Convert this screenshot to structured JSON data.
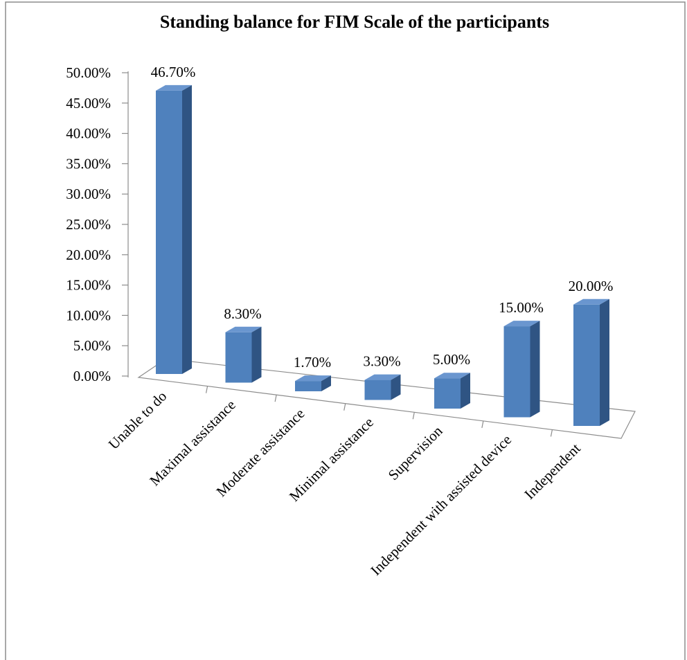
{
  "chart_data": {
    "type": "bar3d",
    "title": "Standing balance for FIM Scale of the participants",
    "categories": [
      "Unable to do",
      "Maximal assistance",
      "Moderate assistance",
      "Minimal assistance",
      "Supervision",
      "Independent with assisted device",
      "Independent"
    ],
    "values": [
      46.7,
      8.3,
      1.7,
      3.3,
      5.0,
      15.0,
      20.0
    ],
    "value_labels": [
      "46.70%",
      "8.30%",
      "1.70%",
      "3.30%",
      "5.00%",
      "15.00%",
      "20.00%"
    ],
    "color": "#4f81bd",
    "ylim": [
      0,
      50
    ],
    "yticks": [
      {
        "value": 0,
        "label": "0.00%"
      },
      {
        "value": 5,
        "label": "5.00%"
      },
      {
        "value": 10,
        "label": "10.00%"
      },
      {
        "value": 15,
        "label": "15.00%"
      },
      {
        "value": 20,
        "label": "20.00%"
      },
      {
        "value": 25,
        "label": "25.00%"
      },
      {
        "value": 30,
        "label": "30.00%"
      },
      {
        "value": 35,
        "label": "35.00%"
      },
      {
        "value": 40,
        "label": "40.00%"
      },
      {
        "value": 45,
        "label": "45.00%"
      },
      {
        "value": 50,
        "label": "50.00%"
      }
    ],
    "grid": false
  }
}
